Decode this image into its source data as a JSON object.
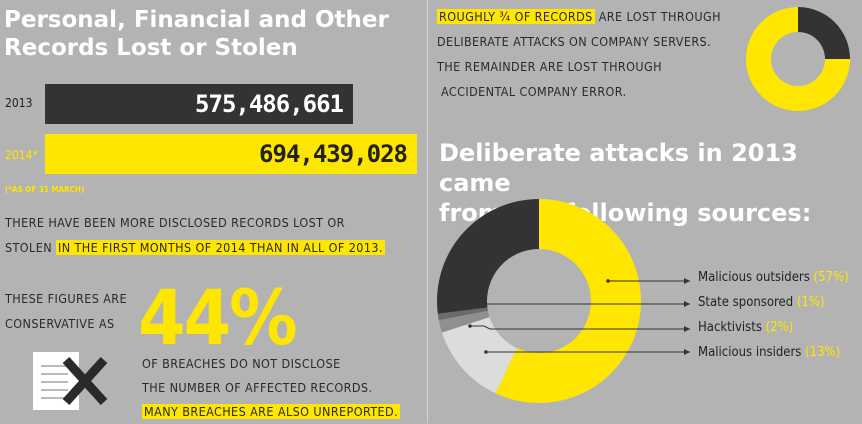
{
  "title_line1": "Personal, Financial and Other",
  "title_line2": "Records Lost or Stolen",
  "records": [
    {
      "year": "2013",
      "value": "575,486,661",
      "amount": 575486661,
      "color": "#333333",
      "text_color": "#ffffff",
      "label_color": "#222222"
    },
    {
      "year": "2014*",
      "value": "694,439,028",
      "amount": 694439028,
      "color": "#ffe600",
      "text_color": "#222222",
      "label_color": "#ffe600"
    }
  ],
  "footnote": "(*AS OF 31 MARCH)",
  "disclosed_text_a": "THERE HAVE BEEN MORE DISCLOSED RECORDS LOST OR",
  "disclosed_text_b": "STOLEN",
  "disclosed_text_hl": "IN THE FIRST MONTHS OF 2014 THAN IN ALL OF 2013.",
  "figures_line1": "THESE FIGURES ARE",
  "figures_line2": "CONSERVATIVE AS",
  "big_percent": "44%",
  "breaches_line1": "OF BREACHES DO NOT DISCLOSE",
  "breaches_line2": "THE NUMBER OF AFFECTED RECORDS.",
  "breaches_hl": "MANY BREACHES ARE ALSO UNREPORTED.",
  "icon": "document-x-icon",
  "roughly_hl": "ROUGHLY ¾ OF RECORDS",
  "roughly_rest": "ARE LOST THROUGH",
  "roughly_line2": "DELIBERATE ATTACKS ON COMPANY SERVERS.",
  "roughly_line3": "THE REMAINDER ARE LOST THROUGH",
  "roughly_line4": "ACCIDENTAL COMPANY ERROR.",
  "sources_heading_line1": "Deliberate attacks in 2013 came",
  "sources_heading_line2": "from the following sources:",
  "colors": {
    "yellow": "#ffe600",
    "dark": "#333333",
    "grey_mid": "#8f8f8f",
    "grey_light": "#dcdcdc",
    "bg": "#b3b3b3"
  },
  "chart_data": [
    {
      "type": "pie",
      "title": "",
      "slices": [
        {
          "name": "deliberate attacks",
          "value": 75,
          "color": "#ffe600"
        },
        {
          "name": "accidental company error",
          "value": 25,
          "color": "#333333"
        }
      ]
    },
    {
      "type": "pie",
      "title": "Deliberate attacks in 2013 came from the following sources:",
      "slices": [
        {
          "name": "Malicious outsiders",
          "label": "Malicious outsiders",
          "pct_label": "(57%)",
          "value": 57,
          "color": "#ffe600"
        },
        {
          "name": "Malicious insiders",
          "label": "Malicious insiders",
          "pct_label": "(13%)",
          "value": 13,
          "color": "#dcdcdc"
        },
        {
          "name": "Hacktivists",
          "label": "Hacktivists",
          "pct_label": "(2%)",
          "value": 2,
          "color": "#8f8f8f"
        },
        {
          "name": "State sponsored",
          "label": "State sponsored",
          "pct_label": "(1%)",
          "value": 1,
          "color": "#6b6b6b"
        },
        {
          "name": "unlabelled",
          "value": 27,
          "color": "#333333"
        }
      ],
      "legend": "right"
    }
  ]
}
